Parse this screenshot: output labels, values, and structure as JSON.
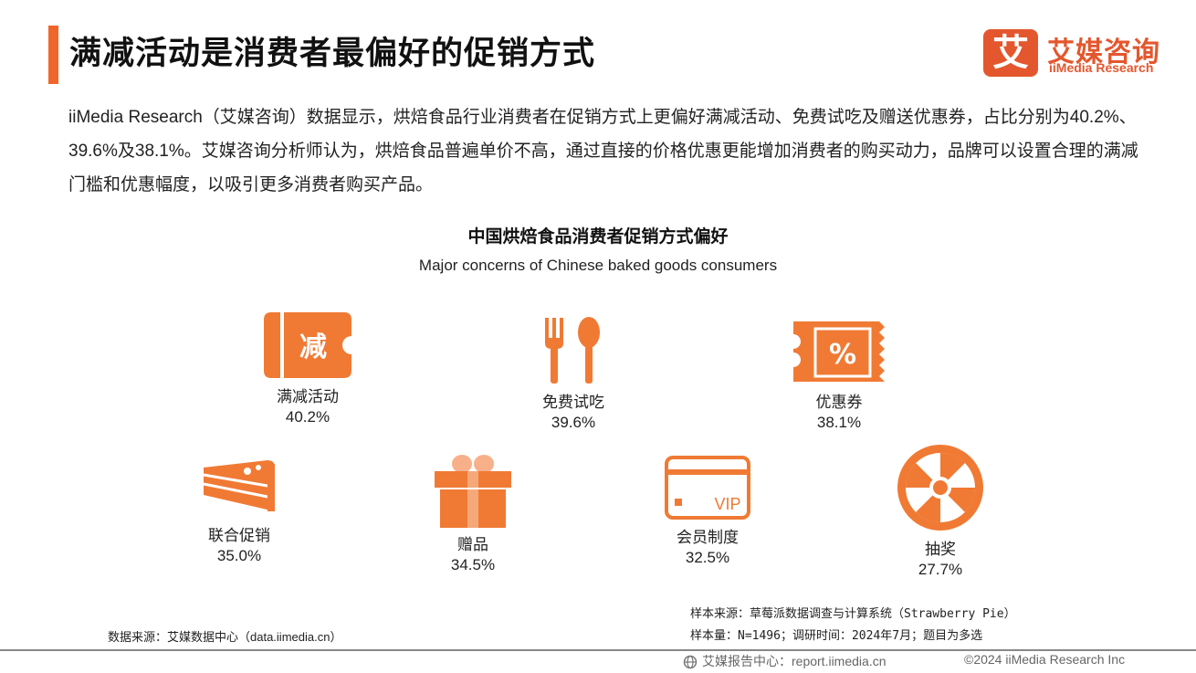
{
  "header": {
    "title": "满减活动是消费者最偏好的促销方式",
    "accent_color": "#f0662a"
  },
  "logo": {
    "mark": "艾",
    "name_cn": "艾媒咨询",
    "name_en": "iiMedia Research"
  },
  "intro": "iiMedia Research（艾媒咨询）数据显示，烘焙食品行业消费者在促销方式上更偏好满减活动、免费试吃及赠送优惠券，占比分别为40.2%、39.6%及38.1%。艾媒咨询分析师认为，烘焙食品普遍单价不高，通过直接的价格优惠更能增加消费者的购买动力，品牌可以设置合理的满减门槛和优惠幅度，以吸引更多消费者购买产品。",
  "chart": {
    "title": "中国烘焙食品消费者促销方式偏好",
    "subtitle": "Major concerns of Chinese baked goods consumers",
    "icon_color": "#f07a34",
    "items": [
      {
        "label": "满减活动",
        "value": "40.2%",
        "icon": "discount-ticket-icon",
        "icon_text": "减"
      },
      {
        "label": "免费试吃",
        "value": "39.6%",
        "icon": "fork-spoon-icon"
      },
      {
        "label": "优惠券",
        "value": "38.1%",
        "icon": "percent-coupon-icon",
        "icon_text": "%"
      },
      {
        "label": "联合促销",
        "value": "35.0%",
        "icon": "cake-slice-icon"
      },
      {
        "label": "赠品",
        "value": "34.5%",
        "icon": "gift-box-icon"
      },
      {
        "label": "会员制度",
        "value": "32.5%",
        "icon": "vip-card-icon",
        "icon_text": "VIP"
      },
      {
        "label": "抽奖",
        "value": "27.7%",
        "icon": "prize-wheel-icon"
      }
    ]
  },
  "chart_data": {
    "type": "table",
    "title": "中国烘焙食品消费者促销方式偏好",
    "subtitle": "Major concerns of Chinese baked goods consumers",
    "categories": [
      "满减活动",
      "免费试吃",
      "优惠券",
      "联合促销",
      "赠品",
      "会员制度",
      "抽奖"
    ],
    "values": [
      40.2,
      39.6,
      38.1,
      35.0,
      34.5,
      32.5,
      27.7
    ],
    "unit": "%"
  },
  "notes": {
    "sample_source": "样本来源：草莓派数据调查与计算系统（Strawberry Pie）",
    "sample_size": "样本量：N=1496；调研时间：2024年7月；题目为多选",
    "data_source": "数据来源：艾媒数据中心（data.iimedia.cn）"
  },
  "footer": {
    "report_center": "艾媒报告中心：report.iimedia.cn",
    "copyright": "©2024  iiMedia Research  Inc"
  }
}
